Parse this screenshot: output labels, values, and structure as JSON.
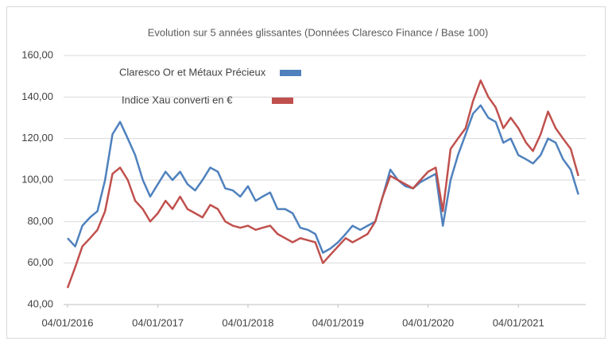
{
  "chart_data": {
    "type": "line",
    "title": "Evolution sur 5 années glissantes (Données Claresco Finance / Base 100)",
    "x": [
      "04/01/2016",
      "04/02/2016",
      "04/03/2016",
      "04/04/2016",
      "04/05/2016",
      "04/06/2016",
      "04/07/2016",
      "04/08/2016",
      "04/09/2016",
      "04/10/2016",
      "04/11/2016",
      "04/12/2016",
      "04/01/2017",
      "04/02/2017",
      "04/03/2017",
      "04/04/2017",
      "04/05/2017",
      "04/06/2017",
      "04/07/2017",
      "04/08/2017",
      "04/09/2017",
      "04/10/2017",
      "04/11/2017",
      "04/12/2017",
      "04/01/2018",
      "04/02/2018",
      "04/03/2018",
      "04/04/2018",
      "04/05/2018",
      "04/06/2018",
      "04/07/2018",
      "04/08/2018",
      "04/09/2018",
      "04/10/2018",
      "04/11/2018",
      "04/12/2018",
      "04/01/2019",
      "04/02/2019",
      "04/03/2019",
      "04/04/2019",
      "04/05/2019",
      "04/06/2019",
      "04/07/2019",
      "04/08/2019",
      "04/09/2019",
      "04/10/2019",
      "04/11/2019",
      "04/12/2019",
      "04/01/2020",
      "04/02/2020",
      "04/03/2020",
      "04/04/2020",
      "04/05/2020",
      "04/06/2020",
      "04/07/2020",
      "04/08/2020",
      "04/09/2020",
      "04/10/2020",
      "04/11/2020",
      "04/12/2020",
      "04/01/2021",
      "04/02/2021",
      "04/03/2021",
      "04/04/2021",
      "04/05/2021",
      "04/06/2021",
      "04/07/2021",
      "04/08/2021",
      "04/09/2021"
    ],
    "series": [
      {
        "name": "Claresco Or et Métaux Précieux",
        "color": "#4f81bd",
        "values": [
          72,
          68,
          78,
          82,
          85,
          100,
          122,
          128,
          120,
          112,
          100,
          92,
          98,
          104,
          100,
          104,
          98,
          95,
          100,
          106,
          104,
          96,
          95,
          92,
          97,
          90,
          92,
          94,
          86,
          86,
          84,
          77,
          76,
          74,
          65,
          67,
          70,
          74,
          78,
          76,
          78,
          80,
          92,
          105,
          100,
          97,
          96,
          99,
          101,
          103,
          78,
          100,
          112,
          122,
          132,
          136,
          130,
          128,
          118,
          120,
          112,
          110,
          108,
          112,
          120,
          118,
          110,
          105,
          93
        ]
      },
      {
        "name": "Indice Xau converti en €",
        "color": "#c0504d",
        "values": [
          48,
          58,
          68,
          72,
          76,
          85,
          103,
          106,
          100,
          90,
          86,
          80,
          84,
          90,
          86,
          92,
          86,
          84,
          82,
          88,
          86,
          80,
          78,
          77,
          78,
          76,
          77,
          78,
          74,
          72,
          70,
          72,
          71,
          70,
          60,
          64,
          68,
          72,
          70,
          72,
          74,
          80,
          92,
          102,
          100,
          98,
          96,
          100,
          104,
          106,
          85,
          115,
          120,
          125,
          138,
          148,
          140,
          135,
          125,
          130,
          125,
          118,
          114,
          122,
          133,
          125,
          120,
          115,
          102
        ]
      }
    ],
    "xlim": [
      "04/01/2016",
      "04/10/2021"
    ],
    "xticks": [
      "04/01/2016",
      "04/01/2017",
      "04/01/2018",
      "04/01/2019",
      "04/01/2020",
      "04/01/2021"
    ],
    "ylim": [
      40,
      160
    ],
    "yticks": [
      {
        "value": 40,
        "label": "40,00"
      },
      {
        "value": 60,
        "label": "60,00"
      },
      {
        "value": 80,
        "label": "80,00"
      },
      {
        "value": 100,
        "label": "100,00"
      },
      {
        "value": 120,
        "label": "120,00"
      },
      {
        "value": 140,
        "label": "140,00"
      },
      {
        "value": 160,
        "label": "160,00"
      }
    ],
    "grid": true
  }
}
